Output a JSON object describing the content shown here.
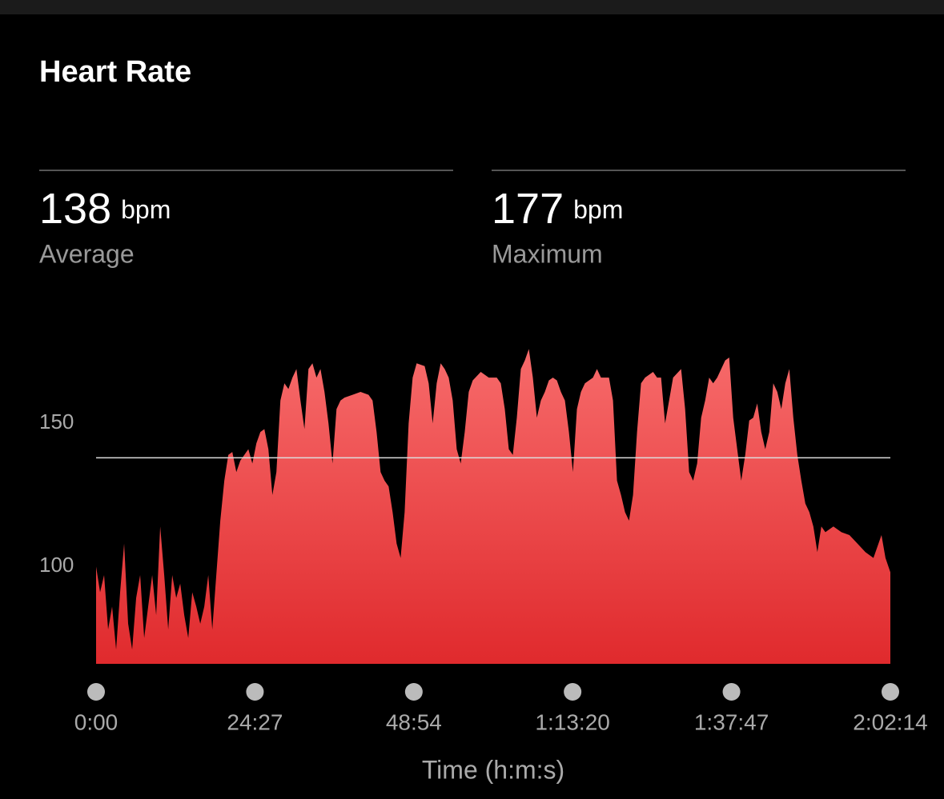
{
  "title": "Heart Rate",
  "stats": [
    {
      "value": 138,
      "unit": "bpm",
      "label": "Average"
    },
    {
      "value": 177,
      "unit": "bpm",
      "label": "Maximum"
    }
  ],
  "chart_data": {
    "type": "area",
    "x_label": "Time (h:m:s)",
    "color_top": "#f76b6b",
    "color_bottom": "#e02a2d",
    "xlim": [
      0,
      7334
    ],
    "ylim": [
      66,
      180
    ],
    "xticks": [
      {
        "value": 0,
        "label": "0:00"
      },
      {
        "value": 1467,
        "label": "24:27"
      },
      {
        "value": 2934,
        "label": "48:54"
      },
      {
        "value": 4400,
        "label": "1:13:20"
      },
      {
        "value": 5867,
        "label": "1:37:47"
      },
      {
        "value": 7334,
        "label": "2:02:14"
      }
    ],
    "yticks": [
      100,
      150
    ],
    "x": [
      0,
      37,
      74,
      111,
      148,
      185,
      222,
      259,
      296,
      333,
      370,
      407,
      444,
      481,
      518,
      555,
      592,
      629,
      666,
      703,
      740,
      777,
      814,
      851,
      888,
      925,
      962,
      999,
      1036,
      1073,
      1110,
      1147,
      1184,
      1221,
      1258,
      1295,
      1332,
      1369,
      1406,
      1443,
      1480,
      1517,
      1554,
      1591,
      1628,
      1665,
      1702,
      1739,
      1776,
      1813,
      1850,
      1887,
      1924,
      1961,
      1998,
      2035,
      2072,
      2109,
      2146,
      2183,
      2220,
      2257,
      2294,
      2368,
      2442,
      2516,
      2553,
      2590,
      2627,
      2664,
      2701,
      2738,
      2775,
      2812,
      2849,
      2886,
      2923,
      2960,
      3034,
      3071,
      3108,
      3145,
      3182,
      3219,
      3256,
      3293,
      3330,
      3367,
      3404,
      3441,
      3478,
      3552,
      3626,
      3700,
      3737,
      3774,
      3811,
      3848,
      3885,
      3922,
      3959,
      3996,
      4033,
      4070,
      4107,
      4144,
      4181,
      4218,
      4255,
      4292,
      4329,
      4366,
      4403,
      4440,
      4477,
      4514,
      4588,
      4625,
      4662,
      4736,
      4773,
      4810,
      4847,
      4884,
      4921,
      4958,
      4995,
      5032,
      5069,
      5143,
      5180,
      5217,
      5254,
      5291,
      5328,
      5402,
      5439,
      5476,
      5513,
      5550,
      5587,
      5624,
      5661,
      5698,
      5735,
      5772,
      5809,
      5846,
      5883,
      5920,
      5957,
      5994,
      6031,
      6068,
      6105,
      6142,
      6179,
      6216,
      6253,
      6290,
      6327,
      6364,
      6401,
      6438,
      6475,
      6512,
      6549,
      6586,
      6623,
      6660,
      6697,
      6734,
      6808,
      6882,
      6956,
      7030,
      7104,
      7178,
      7252,
      7289,
      7334
    ],
    "values": [
      100,
      91,
      97,
      78,
      86,
      71,
      91,
      108,
      80,
      71,
      89,
      97,
      75,
      86,
      97,
      83,
      114,
      97,
      78,
      97,
      89,
      94,
      83,
      75,
      91,
      86,
      80,
      86,
      97,
      78,
      97,
      116,
      130,
      139,
      140,
      133,
      137,
      139,
      141,
      136,
      143,
      147,
      148,
      141,
      125,
      133,
      158,
      164,
      162,
      166,
      169,
      158,
      148,
      169,
      171,
      166,
      169,
      161,
      150,
      136,
      155,
      158,
      159,
      160,
      161,
      160,
      158,
      147,
      133,
      130,
      128,
      119,
      108,
      103,
      119,
      150,
      166,
      171,
      170,
      164,
      150,
      164,
      171,
      169,
      166,
      158,
      141,
      136,
      147,
      161,
      165,
      168,
      166,
      166,
      164,
      155,
      141,
      139,
      152,
      169,
      172,
      176,
      166,
      152,
      158,
      161,
      165,
      166,
      165,
      161,
      158,
      147,
      133,
      155,
      161,
      164,
      166,
      169,
      166,
      166,
      158,
      130,
      125,
      119,
      116,
      125,
      147,
      164,
      166,
      168,
      166,
      166,
      150,
      158,
      166,
      169,
      155,
      133,
      130,
      136,
      152,
      158,
      166,
      164,
      166,
      169,
      172,
      173,
      152,
      141,
      130,
      139,
      151,
      152,
      157,
      147,
      141,
      147,
      164,
      161,
      155,
      164,
      169,
      152,
      139,
      130,
      122,
      119,
      114,
      105,
      114,
      112,
      114,
      112,
      111,
      108,
      105,
      103,
      111,
      103,
      98
    ]
  }
}
